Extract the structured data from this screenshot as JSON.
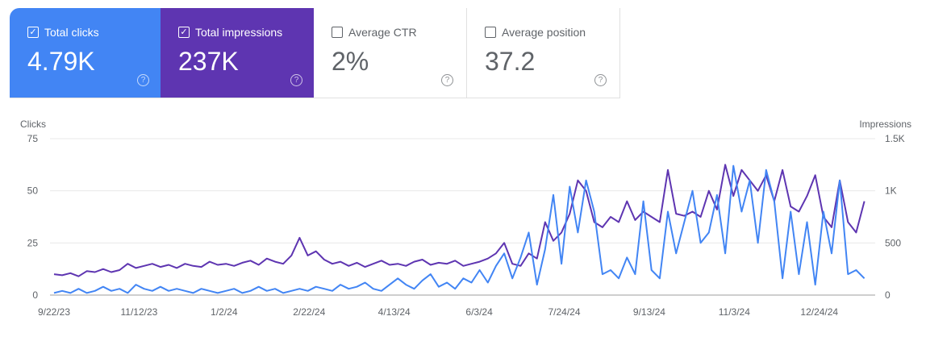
{
  "cards": [
    {
      "label": "Total clicks",
      "value": "4.79K",
      "checked": true
    },
    {
      "label": "Total impressions",
      "value": "237K",
      "checked": true
    },
    {
      "label": "Average CTR",
      "value": "2%",
      "checked": false
    },
    {
      "label": "Average position",
      "value": "37.2",
      "checked": false
    }
  ],
  "colors": {
    "clicks": "#4285f4",
    "impressions": "#5e35b1"
  },
  "chart_data": {
    "type": "line",
    "left_axis_label": "Clicks",
    "right_axis_label": "Impressions",
    "left_ticks": [
      "0",
      "25",
      "50",
      "75"
    ],
    "right_ticks": [
      "0",
      "500",
      "1K",
      "1.5K"
    ],
    "left_ylim": [
      0,
      75
    ],
    "right_ylim": [
      0,
      1500
    ],
    "x_ticks": [
      "9/22/23",
      "11/12/23",
      "1/2/24",
      "2/22/24",
      "4/13/24",
      "6/3/24",
      "7/24/24",
      "9/13/24",
      "11/3/24",
      "12/24/24"
    ],
    "x_range_days": [
      0,
      486
    ],
    "grid": true,
    "series": [
      {
        "name": "Clicks",
        "axis": "left",
        "values": [
          1,
          2,
          1,
          3,
          1,
          2,
          4,
          2,
          3,
          1,
          5,
          3,
          2,
          4,
          2,
          3,
          2,
          1,
          3,
          2,
          1,
          2,
          3,
          1,
          2,
          4,
          2,
          3,
          1,
          2,
          3,
          2,
          4,
          3,
          2,
          5,
          3,
          4,
          6,
          3,
          2,
          5,
          8,
          5,
          3,
          7,
          10,
          4,
          6,
          3,
          8,
          6,
          12,
          6,
          14,
          20,
          8,
          18,
          30,
          5,
          22,
          48,
          15,
          52,
          30,
          55,
          40,
          10,
          12,
          8,
          18,
          10,
          45,
          12,
          8,
          40,
          20,
          35,
          50,
          25,
          30,
          48,
          20,
          62,
          40,
          55,
          25,
          60,
          45,
          8,
          40,
          10,
          35,
          5,
          40,
          20,
          55,
          10,
          12,
          8
        ]
      },
      {
        "name": "Impressions",
        "axis": "right",
        "values": [
          200,
          190,
          210,
          180,
          230,
          220,
          250,
          220,
          240,
          300,
          260,
          280,
          300,
          270,
          290,
          260,
          300,
          280,
          270,
          320,
          290,
          300,
          280,
          310,
          330,
          290,
          350,
          320,
          300,
          380,
          550,
          380,
          420,
          340,
          300,
          320,
          280,
          310,
          270,
          300,
          330,
          290,
          300,
          280,
          320,
          340,
          290,
          310,
          300,
          330,
          280,
          300,
          320,
          350,
          400,
          500,
          300,
          280,
          400,
          350,
          700,
          520,
          600,
          780,
          1100,
          1000,
          700,
          650,
          750,
          700,
          900,
          720,
          800,
          750,
          700,
          1200,
          780,
          760,
          800,
          750,
          1000,
          820,
          1250,
          950,
          1200,
          1100,
          1000,
          1150,
          900,
          1200,
          850,
          800,
          950,
          1150,
          750,
          650,
          1100,
          700,
          600,
          900
        ]
      }
    ]
  }
}
